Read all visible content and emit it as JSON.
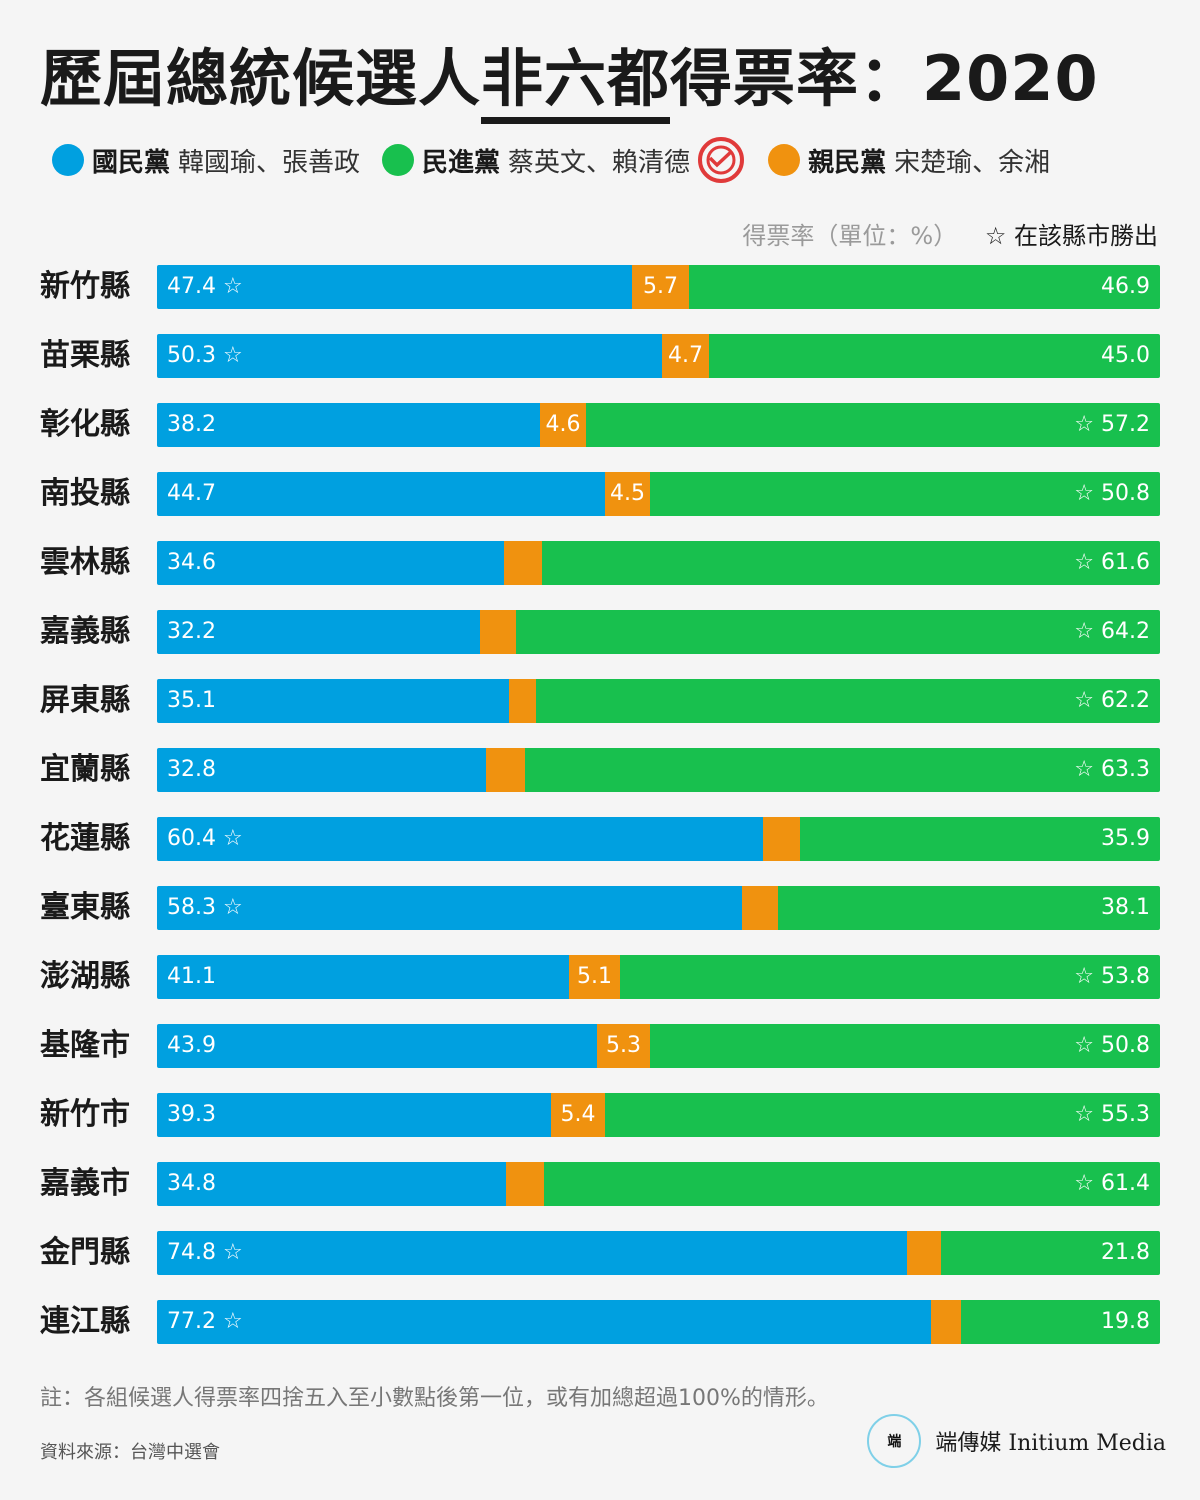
{
  "title": {
    "prefix": "歷屆總統候選人",
    "highlight": "非六都",
    "suffix": "得票率：2020"
  },
  "legend": [
    {
      "party": "國民黨",
      "candidates": "韓國瑜、張善政",
      "color": "#00a0e0"
    },
    {
      "party": "民進黨",
      "candidates": "蔡英文、賴清德",
      "color": "#18c04e",
      "winner_icon": "vote-stamp-icon"
    },
    {
      "party": "親民黨",
      "candidates": "宋楚瑜、余湘",
      "color": "#f0920f"
    }
  ],
  "unit_label": "得票率（單位：%）",
  "star_note": "☆ 在該縣市勝出",
  "chart_data": {
    "type": "bar",
    "stacked": true,
    "orientation": "horizontal",
    "series_names": [
      "國民黨",
      "親民黨",
      "民進黨"
    ],
    "rows": [
      {
        "name": "新竹縣",
        "kmt": 47.4,
        "pfp": 5.7,
        "dpp": 46.9,
        "pfp_label": "5.7",
        "winner": "kmt"
      },
      {
        "name": "苗栗縣",
        "kmt": 50.3,
        "pfp": 4.7,
        "dpp": 45.0,
        "pfp_label": "4.7",
        "winner": "kmt"
      },
      {
        "name": "彰化縣",
        "kmt": 38.2,
        "pfp": 4.6,
        "dpp": 57.2,
        "pfp_label": "4.6",
        "winner": "dpp"
      },
      {
        "name": "南投縣",
        "kmt": 44.7,
        "pfp": 4.5,
        "dpp": 50.8,
        "pfp_label": "4.5",
        "winner": "dpp"
      },
      {
        "name": "雲林縣",
        "kmt": 34.6,
        "pfp": 3.8,
        "dpp": 61.6,
        "pfp_label": "",
        "winner": "dpp"
      },
      {
        "name": "嘉義縣",
        "kmt": 32.2,
        "pfp": 3.6,
        "dpp": 64.2,
        "pfp_label": "",
        "winner": "dpp"
      },
      {
        "name": "屏東縣",
        "kmt": 35.1,
        "pfp": 2.7,
        "dpp": 62.2,
        "pfp_label": "",
        "winner": "dpp"
      },
      {
        "name": "宜蘭縣",
        "kmt": 32.8,
        "pfp": 3.9,
        "dpp": 63.3,
        "pfp_label": "",
        "winner": "dpp"
      },
      {
        "name": "花蓮縣",
        "kmt": 60.4,
        "pfp": 3.7,
        "dpp": 35.9,
        "pfp_label": "",
        "winner": "kmt"
      },
      {
        "name": "臺東縣",
        "kmt": 58.3,
        "pfp": 3.6,
        "dpp": 38.1,
        "pfp_label": "",
        "winner": "kmt"
      },
      {
        "name": "澎湖縣",
        "kmt": 41.1,
        "pfp": 5.1,
        "dpp": 53.8,
        "pfp_label": "5.1",
        "winner": "dpp"
      },
      {
        "name": "基隆市",
        "kmt": 43.9,
        "pfp": 5.3,
        "dpp": 50.8,
        "pfp_label": "5.3",
        "winner": "dpp"
      },
      {
        "name": "新竹市",
        "kmt": 39.3,
        "pfp": 5.4,
        "dpp": 55.3,
        "pfp_label": "5.4",
        "winner": "dpp"
      },
      {
        "name": "嘉義市",
        "kmt": 34.8,
        "pfp": 3.8,
        "dpp": 61.4,
        "pfp_label": "",
        "winner": "dpp"
      },
      {
        "name": "金門縣",
        "kmt": 74.8,
        "pfp": 3.4,
        "dpp": 21.8,
        "pfp_label": "",
        "winner": "kmt"
      },
      {
        "name": "連江縣",
        "kmt": 77.2,
        "pfp": 3.0,
        "dpp": 19.8,
        "pfp_label": "",
        "winner": "kmt"
      }
    ],
    "xlim": [
      0,
      100
    ]
  },
  "note": "註：各組候選人得票率四捨五入至小數點後第一位，或有加總超過100%的情形。",
  "source": "資料來源：台灣中選會",
  "brand": {
    "logo": "端",
    "name": "端傳媒 Initium Media"
  }
}
